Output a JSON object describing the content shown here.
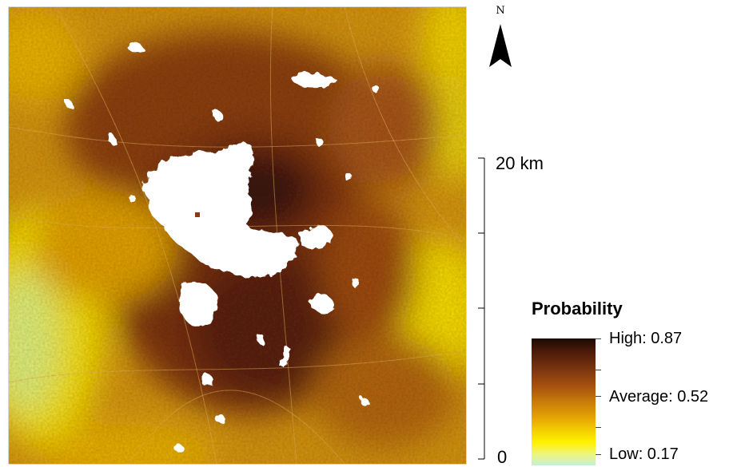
{
  "north_arrow": {
    "label": "N"
  },
  "scale_bar": {
    "top_label": "20 km",
    "zero_label": "0"
  },
  "legend": {
    "title": "Probability",
    "high_label": "High: 0.87",
    "average_label": "Average: 0.52",
    "low_label": "Low: 0.17",
    "colors": {
      "high": "#1c0b05",
      "dark_brown": "#7a3410",
      "orange": "#c97c08",
      "yellow": "#fff200",
      "low": "#c4f0d8"
    }
  },
  "map": {
    "no_data_color": "#ffffff",
    "background_color": "#d9a20a"
  }
}
